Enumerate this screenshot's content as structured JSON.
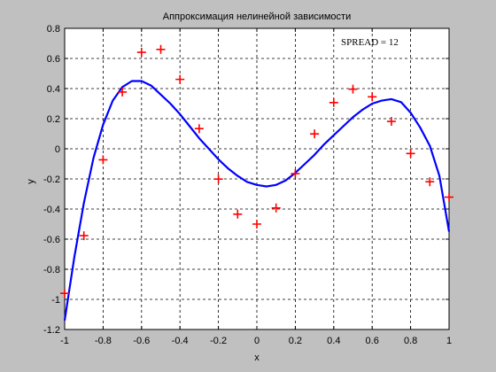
{
  "chart_data": {
    "type": "scatter",
    "title": "Аппроксимация нелинейной зависимости",
    "xlabel": "x",
    "ylabel": "y",
    "xlim": [
      -1,
      1
    ],
    "ylim": [
      -1.2,
      0.8
    ],
    "xticks": [
      -1,
      -0.8,
      -0.6,
      -0.4,
      -0.2,
      0,
      0.2,
      0.4,
      0.6,
      0.8,
      1
    ],
    "yticks": [
      -1.2,
      -1,
      -0.8,
      -0.6,
      -0.4,
      -0.2,
      0,
      0.2,
      0.4,
      0.6,
      0.8
    ],
    "xtick_labels": [
      "-1",
      "-0.8",
      "-0.6",
      "-0.4",
      "-0.2",
      "0",
      "0.2",
      "0.4",
      "0.6",
      "0.8",
      "1"
    ],
    "ytick_labels": [
      "-1.2",
      "-1",
      "-0.8",
      "-0.6",
      "-0.4",
      "-0.2",
      "0",
      "0.2",
      "0.4",
      "0.6",
      "0.8"
    ],
    "grid": true,
    "annotation": "SPREAD = 12",
    "series": [
      {
        "marker": "plus",
        "color": "#ff0000",
        "x": [
          -1,
          -0.9,
          -0.8,
          -0.7,
          -0.6,
          -0.5,
          -0.4,
          -0.3,
          -0.2,
          -0.1,
          0,
          0.1,
          0.2,
          0.3,
          0.4,
          0.5,
          0.6,
          0.7,
          0.8,
          0.9,
          1
        ],
        "y": [
          -0.96,
          -0.577,
          -0.073,
          0.377,
          0.641,
          0.66,
          0.461,
          0.134,
          -0.201,
          -0.434,
          -0.5,
          -0.393,
          -0.165,
          0.099,
          0.307,
          0.396,
          0.345,
          0.182,
          -0.031,
          -0.219,
          -0.321
        ]
      },
      {
        "marker": "line",
        "color": "#0000ff",
        "x": [
          -1,
          -0.95,
          -0.9,
          -0.85,
          -0.8,
          -0.75,
          -0.7,
          -0.65,
          -0.6,
          -0.55,
          -0.5,
          -0.45,
          -0.4,
          -0.35,
          -0.3,
          -0.25,
          -0.2,
          -0.15,
          -0.1,
          -0.05,
          0,
          0.05,
          0.1,
          0.15,
          0.2,
          0.25,
          0.3,
          0.35,
          0.4,
          0.45,
          0.5,
          0.55,
          0.6,
          0.65,
          0.7,
          0.75,
          0.8,
          0.85,
          0.9,
          0.95,
          1
        ],
        "y": [
          -1.14,
          -0.72,
          -0.36,
          -0.06,
          0.16,
          0.32,
          0.41,
          0.45,
          0.45,
          0.42,
          0.36,
          0.3,
          0.23,
          0.15,
          0.07,
          0,
          -0.07,
          -0.13,
          -0.18,
          -0.22,
          -0.24,
          -0.25,
          -0.24,
          -0.21,
          -0.16,
          -0.1,
          -0.04,
          0.03,
          0.09,
          0.15,
          0.21,
          0.26,
          0.3,
          0.32,
          0.33,
          0.31,
          0.24,
          0.14,
          0.02,
          -0.18,
          -0.55
        ]
      }
    ]
  }
}
